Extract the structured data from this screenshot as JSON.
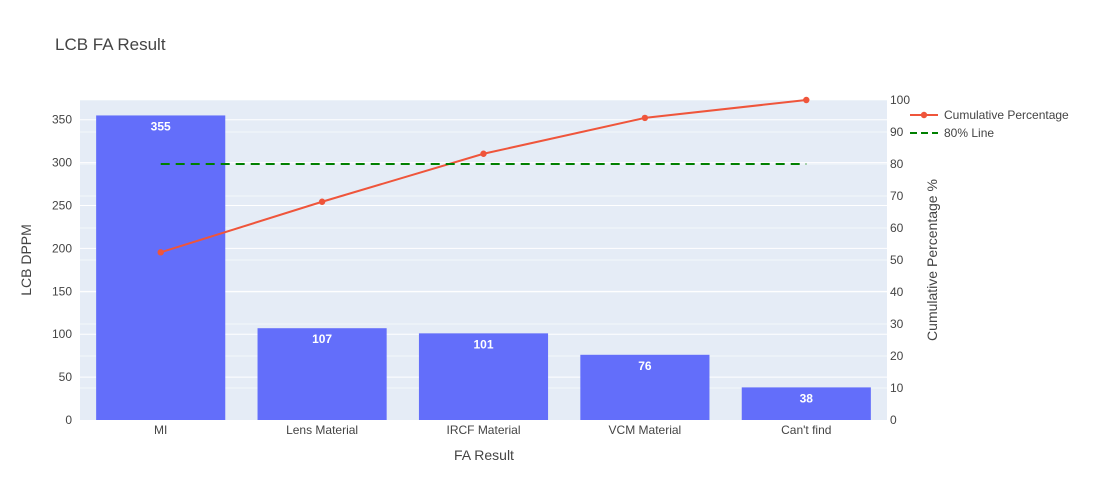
{
  "chart_data": {
    "type": "bar",
    "title": "LCB FA Result",
    "xlabel": "FA Result",
    "ylabel": "LCB DPPM",
    "y2label": "Cumulative Percentage %",
    "categories": [
      "MI",
      "Lens Material",
      "IRCF Material",
      "VCM Material",
      "Can't find"
    ],
    "bar_series": {
      "name": "",
      "values": [
        355,
        107,
        101,
        76,
        38
      ],
      "color": "#636efa"
    },
    "line_series": [
      {
        "name": "Cumulative Percentage",
        "axis": "y2",
        "values": [
          52.4,
          68.2,
          83.2,
          94.4,
          100
        ],
        "color": "#ef553b",
        "markers": true
      },
      {
        "name": "80% Line",
        "axis": "y2",
        "values": [
          80,
          80,
          80,
          80,
          80
        ],
        "color": "#008000",
        "dash": true
      }
    ],
    "ylim": [
      0,
      373
    ],
    "y2lim": [
      0,
      100
    ],
    "yticks": [
      0,
      50,
      100,
      150,
      200,
      250,
      300,
      350
    ],
    "y2ticks": [
      0,
      10,
      20,
      30,
      40,
      50,
      60,
      70,
      80,
      90,
      100
    ],
    "grid": true,
    "legend": "top-right",
    "plot_bg": "#e5ecf6"
  }
}
